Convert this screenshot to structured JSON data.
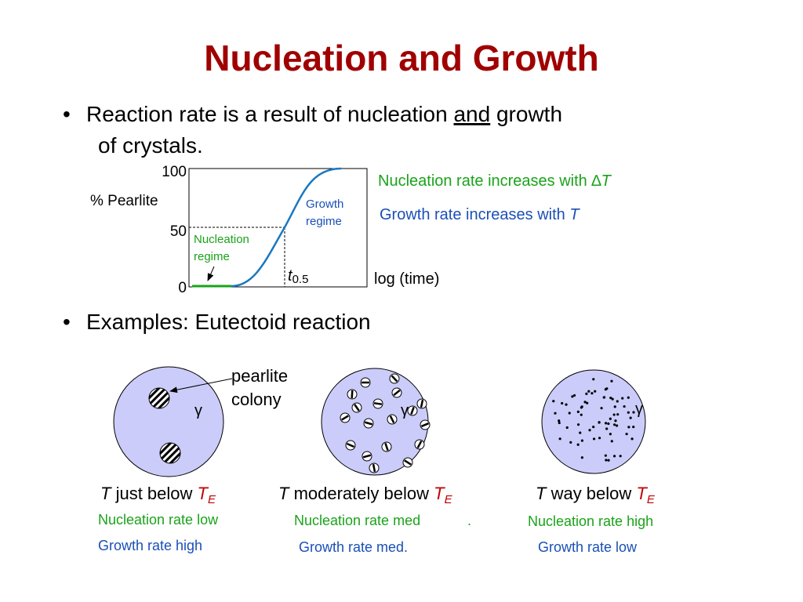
{
  "title": "Nucleation and Growth",
  "bullet_1": {
    "before": "Reaction rate is a result of nucleation ",
    "underlined": "and",
    "after": " growth",
    "continuation": "of crystals."
  },
  "plot": {
    "y_label": "% Pearlite",
    "y_tick_labels": [
      "100",
      "50",
      "0"
    ],
    "x_label": "log (time)",
    "growth_regime": [
      "Growth",
      "regime"
    ],
    "nucleation_regime": [
      "Nucleation",
      "regime"
    ],
    "half_time": {
      "symbol": "t",
      "subscript": "0.5"
    }
  },
  "notes": {
    "nucleation": {
      "text": "Nucleation rate increases with ∆",
      "variable": "T"
    },
    "growth": {
      "text": "Growth rate increases with ",
      "variable": "T"
    }
  },
  "bullet_2": "Examples: Eutectoid reaction",
  "pearlite_colony": [
    "pearlite",
    "colony"
  ],
  "phase_symbol": "γ",
  "cases": [
    {
      "variable": "T",
      "text": " just below ",
      "ref_variable": "T",
      "ref_subscript": "E",
      "nucleation": "Nucleation rate low",
      "growth": "Growth rate high"
    },
    {
      "variable": "T",
      "text": " moderately below ",
      "ref_variable": "T",
      "ref_subscript": "E",
      "nucleation": "Nucleation rate med",
      "nucleation_extra": ".",
      "growth": "Growth rate med."
    },
    {
      "variable": "T",
      "text": " way below ",
      "ref_variable": "T",
      "ref_subscript": "E",
      "nucleation": "Nucleation rate high",
      "growth": "Growth rate low"
    }
  ]
}
